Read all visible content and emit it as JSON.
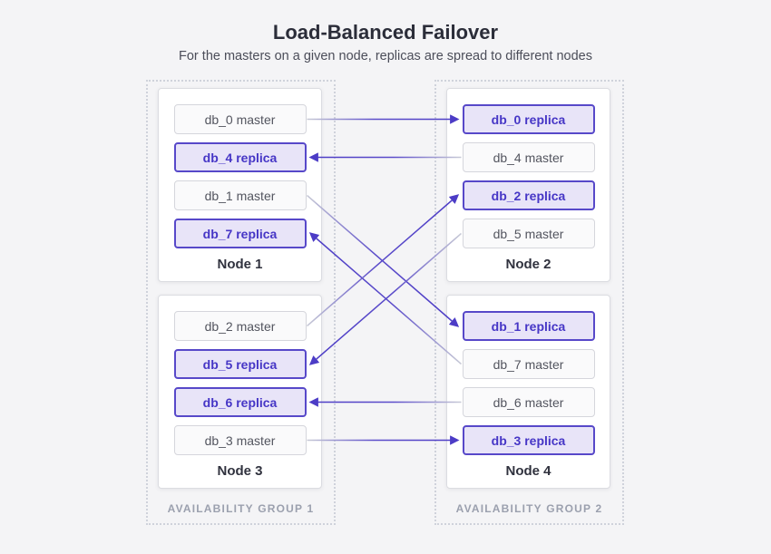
{
  "header": {
    "title": "Load-Balanced Failover",
    "subtitle": "For the masters on a given node, replicas are spread to different nodes"
  },
  "groups": [
    {
      "label": "AVAILABILITY GROUP 1",
      "nodes": [
        {
          "label": "Node 1",
          "boxes": [
            {
              "id": "db_0_master",
              "label": "db_0 master",
              "type": "master"
            },
            {
              "id": "db_4_replica",
              "label": "db_4 replica",
              "type": "replica"
            },
            {
              "id": "db_1_master",
              "label": "db_1 master",
              "type": "master"
            },
            {
              "id": "db_7_replica",
              "label": "db_7 replica",
              "type": "replica"
            }
          ]
        },
        {
          "label": "Node 3",
          "boxes": [
            {
              "id": "db_2_master",
              "label": "db_2 master",
              "type": "master"
            },
            {
              "id": "db_5_replica",
              "label": "db_5 replica",
              "type": "replica"
            },
            {
              "id": "db_6_replica",
              "label": "db_6 replica",
              "type": "replica"
            },
            {
              "id": "db_3_master",
              "label": "db_3 master",
              "type": "master"
            }
          ]
        }
      ]
    },
    {
      "label": "AVAILABILITY GROUP 2",
      "nodes": [
        {
          "label": "Node 2",
          "boxes": [
            {
              "id": "db_0_replica",
              "label": "db_0 replica",
              "type": "replica"
            },
            {
              "id": "db_4_master",
              "label": "db_4 master",
              "type": "master"
            },
            {
              "id": "db_2_replica",
              "label": "db_2 replica",
              "type": "replica"
            },
            {
              "id": "db_5_master",
              "label": "db_5 master",
              "type": "master"
            }
          ]
        },
        {
          "label": "Node 4",
          "boxes": [
            {
              "id": "db_1_replica",
              "label": "db_1 replica",
              "type": "replica"
            },
            {
              "id": "db_7_master",
              "label": "db_7 master",
              "type": "master"
            },
            {
              "id": "db_6_master",
              "label": "db_6 master",
              "type": "master"
            },
            {
              "id": "db_3_replica",
              "label": "db_3 replica",
              "type": "replica"
            }
          ]
        }
      ]
    }
  ],
  "connections": [
    {
      "from": "db_0_master",
      "to": "db_0_replica"
    },
    {
      "from": "db_4_master",
      "to": "db_4_replica"
    },
    {
      "from": "db_1_master",
      "to": "db_1_replica"
    },
    {
      "from": "db_7_master",
      "to": "db_7_replica"
    },
    {
      "from": "db_2_master",
      "to": "db_2_replica"
    },
    {
      "from": "db_5_master",
      "to": "db_5_replica"
    },
    {
      "from": "db_6_master",
      "to": "db_6_replica"
    },
    {
      "from": "db_3_master",
      "to": "db_3_replica"
    }
  ],
  "colors": {
    "background": "#f4f4f6",
    "master_bg": "#fafafb",
    "master_border": "#d5d6dc",
    "master_text": "#53555f",
    "replica_bg": "#e8e4f8",
    "replica_border": "#5748c9",
    "replica_text": "#4636c6",
    "arrow_purple": "#4c3cc6",
    "arrow_gray": "#c8cad6",
    "group_label_text": "#9ba0ae",
    "group_border": "#cfd2db"
  }
}
